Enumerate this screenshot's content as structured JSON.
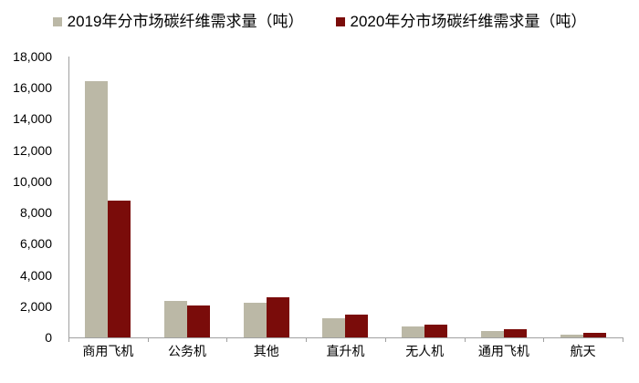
{
  "chart_data": {
    "type": "bar",
    "title": "",
    "categories": [
      "商用飞机",
      "公务机",
      "其他",
      "直升机",
      "无人机",
      "通用飞机",
      "航天"
    ],
    "series": [
      {
        "name": "2019年分市场碳纤维需求量（吨）",
        "color": "#BBB8A6",
        "values": [
          16400,
          2350,
          2250,
          1200,
          700,
          400,
          200
        ]
      },
      {
        "name": "2020年分市场碳纤维需求量（吨）",
        "color": "#7A0C0A",
        "values": [
          8750,
          2050,
          2600,
          1450,
          800,
          500,
          300
        ]
      }
    ],
    "xlabel": "",
    "ylabel": "",
    "ylim": [
      0,
      18000
    ],
    "ytick_step": 2000,
    "ytick_labels": [
      "0",
      "2,000",
      "4,000",
      "6,000",
      "8,000",
      "10,000",
      "12,000",
      "14,000",
      "16,000",
      "18,000"
    ],
    "grid": false,
    "legend_position": "top",
    "axis_color": "#a0a0a0",
    "text_color": "#000000"
  }
}
